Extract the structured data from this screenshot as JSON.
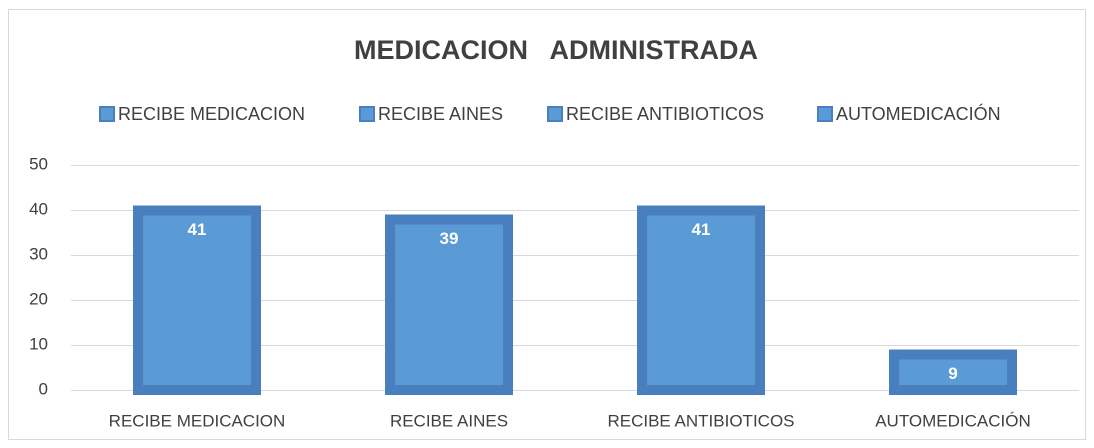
{
  "chart_data": {
    "type": "bar",
    "title": "MEDICACION   ADMINISTRADA",
    "categories": [
      "RECIBE MEDICACION",
      "RECIBE AINES",
      "RECIBE ANTIBIOTICOS",
      "AUTOMEDICACIÓN"
    ],
    "values": [
      41,
      39,
      41,
      9
    ],
    "color": "#5b9bd5",
    "border_color": "#4a7fbf",
    "ylim": [
      0,
      50
    ],
    "yticks": [
      0,
      10,
      20,
      30,
      40,
      50
    ],
    "grid": true,
    "legend": "top"
  }
}
